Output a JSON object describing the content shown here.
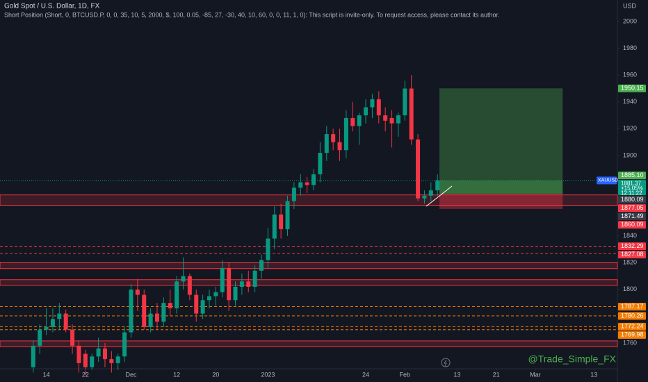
{
  "chart_data": {
    "type": "candlestick",
    "title": "Gold Spot / U.S. Dollar, 1D, FX",
    "subtitle": "Short Position (Short, 0, BTCUSD.P, 0, 0, 35, 10, 5, 2000, $, 100, 0.05, -85, 27, -30, 40, 10, 60, 0, 0, 11, 1, 0): This script is invite-only. To request access, please contact its author.",
    "currency": "USD",
    "watermark": "@Trade_Simple_FX",
    "up_color": "#089981",
    "down_color": "#f23645",
    "ohlc": [
      [
        1742,
        1762,
        1738,
        1758
      ],
      [
        1758,
        1774,
        1752,
        1770
      ],
      [
        1770,
        1786,
        1766,
        1772
      ],
      [
        1772,
        1786,
        1768,
        1778
      ],
      [
        1778,
        1790,
        1770,
        1782
      ],
      [
        1782,
        1785,
        1768,
        1770
      ],
      [
        1770,
        1774,
        1752,
        1758
      ],
      [
        1758,
        1762,
        1738,
        1745
      ],
      [
        1752,
        1755,
        1736,
        1742
      ],
      [
        1742,
        1752,
        1740,
        1750
      ],
      [
        1750,
        1764,
        1746,
        1756
      ],
      [
        1756,
        1760,
        1742,
        1748
      ],
      [
        1748,
        1754,
        1738,
        1745
      ],
      [
        1745,
        1752,
        1740,
        1750
      ],
      [
        1750,
        1772,
        1746,
        1768
      ],
      [
        1768,
        1804,
        1764,
        1800
      ],
      [
        1800,
        1808,
        1784,
        1796
      ],
      [
        1796,
        1800,
        1770,
        1772
      ],
      [
        1772,
        1786,
        1768,
        1782
      ],
      [
        1782,
        1790,
        1770,
        1776
      ],
      [
        1776,
        1794,
        1772,
        1790
      ],
      [
        1790,
        1800,
        1780,
        1786
      ],
      [
        1786,
        1810,
        1782,
        1806
      ],
      [
        1806,
        1824,
        1800,
        1810
      ],
      [
        1810,
        1812,
        1792,
        1796
      ],
      [
        1796,
        1800,
        1776,
        1782
      ],
      [
        1782,
        1796,
        1778,
        1792
      ],
      [
        1792,
        1800,
        1786,
        1795
      ],
      [
        1795,
        1802,
        1788,
        1798
      ],
      [
        1798,
        1822,
        1794,
        1816
      ],
      [
        1816,
        1820,
        1784,
        1792
      ],
      [
        1792,
        1806,
        1788,
        1802
      ],
      [
        1802,
        1812,
        1796,
        1806
      ],
      [
        1806,
        1814,
        1798,
        1802
      ],
      [
        1802,
        1818,
        1798,
        1814
      ],
      [
        1814,
        1826,
        1808,
        1822
      ],
      [
        1822,
        1846,
        1816,
        1838
      ],
      [
        1838,
        1862,
        1830,
        1856
      ],
      [
        1856,
        1864,
        1838,
        1845
      ],
      [
        1845,
        1870,
        1840,
        1866
      ],
      [
        1866,
        1880,
        1860,
        1876
      ],
      [
        1876,
        1886,
        1870,
        1880
      ],
      [
        1880,
        1884,
        1872,
        1878
      ],
      [
        1878,
        1890,
        1874,
        1886
      ],
      [
        1886,
        1910,
        1880,
        1902
      ],
      [
        1902,
        1922,
        1896,
        1916
      ],
      [
        1916,
        1920,
        1904,
        1910
      ],
      [
        1910,
        1920,
        1896,
        1904
      ],
      [
        1904,
        1934,
        1898,
        1928
      ],
      [
        1928,
        1940,
        1918,
        1922
      ],
      [
        1922,
        1932,
        1908,
        1930
      ],
      [
        1930,
        1942,
        1924,
        1936
      ],
      [
        1936,
        1946,
        1928,
        1942
      ],
      [
        1942,
        1948,
        1924,
        1930
      ],
      [
        1930,
        1936,
        1918,
        1926
      ],
      [
        1928,
        1934,
        1906,
        1924
      ],
      [
        1924,
        1932,
        1914,
        1930
      ],
      [
        1930,
        1956,
        1926,
        1950
      ],
      [
        1950,
        1960,
        1908,
        1912
      ],
      [
        1912,
        1916,
        1866,
        1868
      ],
      [
        1868,
        1874,
        1864,
        1870
      ],
      [
        1870,
        1880,
        1866,
        1874
      ],
      [
        1874,
        1886,
        1870,
        1881.37
      ]
    ],
    "xlim": [
      -5.1,
      89.6
    ],
    "xticks": [
      {
        "value": 2,
        "label": "14"
      },
      {
        "value": 8,
        "label": "22"
      },
      {
        "value": 15,
        "label": "Dec"
      },
      {
        "value": 22,
        "label": "12"
      },
      {
        "value": 28,
        "label": "20"
      },
      {
        "value": 36,
        "label": "2023"
      },
      {
        "value": 51,
        "label": "24"
      },
      {
        "value": 57,
        "label": "Feb"
      },
      {
        "value": 65,
        "label": "13"
      },
      {
        "value": 71,
        "label": "21"
      },
      {
        "value": 77,
        "label": "Mar"
      },
      {
        "value": 86,
        "label": "13"
      }
    ],
    "ylim": [
      1740.8,
      2016.1
    ],
    "yticks": [
      1760,
      1800,
      1820,
      1840,
      1900,
      1920,
      1940,
      1960,
      1980,
      2000
    ],
    "zones": [
      [
        1870.6,
        1862.9
      ],
      [
        1820.3,
        1815.6
      ],
      [
        1807.3,
        1803.1
      ],
      [
        1761.6,
        1757.4
      ]
    ],
    "levels": [
      {
        "value": 1832.29,
        "color": "#f23645"
      },
      {
        "value": 1827.08,
        "color": "#f23645"
      },
      {
        "value": 1787.17,
        "color": "#f57c00"
      },
      {
        "value": 1780.26,
        "color": "#f57c00"
      },
      {
        "value": 1772.24,
        "color": "#f57c00"
      },
      {
        "value": 1769.98,
        "color": "#f57c00"
      }
    ],
    "price_labels": [
      {
        "value": 1950.15,
        "color": "#4caf50"
      },
      {
        "value": 1885.1,
        "label": "1885.10",
        "color": "#4caf50"
      },
      {
        "value": 1880.09,
        "color": "#363a45"
      },
      {
        "value": 1877.05,
        "color": "#f23645"
      },
      {
        "value": 1871.49,
        "color": "#363a45"
      },
      {
        "value": 1860.09,
        "color": "#f23645"
      }
    ],
    "position": {
      "entry": 1871.49,
      "target": 1950.15,
      "stop": 1860.09,
      "start": 62.3,
      "end": 81.2
    },
    "last": {
      "symbol": "XAUUSD",
      "price": 1881.37,
      "change": {
        "value": 15.05,
        "label": "+15.05%"
      },
      "countdown": "12:11:22",
      "color": "#089981"
    }
  }
}
